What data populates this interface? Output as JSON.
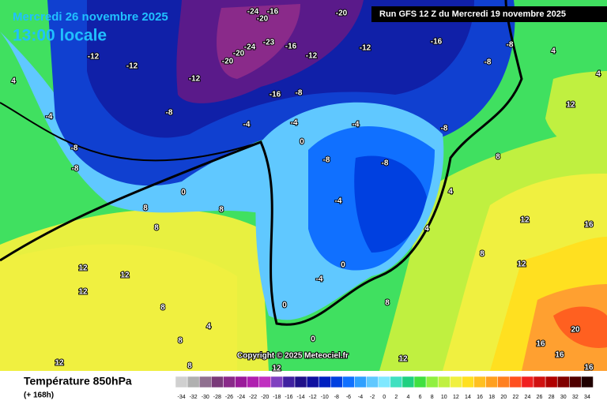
{
  "header": {
    "date": "Mercredi 26 novembre 2025",
    "time": "13:00 locale",
    "run": "Run GFS 12 Z du Mercredi 19 novembre 2025"
  },
  "footer": {
    "title": "Température 850hPa",
    "lead": "(+ 168h)",
    "copyright": "Copyright © 2025 Meteociel.fr"
  },
  "legend": {
    "values": [
      -34,
      -32,
      -30,
      -28,
      -26,
      -24,
      -22,
      -20,
      -18,
      -16,
      -14,
      -12,
      -10,
      -8,
      -6,
      -4,
      -2,
      0,
      2,
      4,
      6,
      8,
      10,
      12,
      14,
      16,
      18,
      20,
      22,
      24,
      26,
      28,
      30,
      32,
      34
    ],
    "colors": [
      "#d0d0d0",
      "#b0b0b0",
      "#907090",
      "#7a3a7a",
      "#8a2a8a",
      "#9a1a9a",
      "#b020b0",
      "#c030c0",
      "#8040c0",
      "#4020a0",
      "#20108a",
      "#1010a0",
      "#0020c0",
      "#0040e0",
      "#1070ff",
      "#30a0ff",
      "#60c8ff",
      "#80e8ff",
      "#40e0c0",
      "#20d080",
      "#40e040",
      "#90f040",
      "#c0f040",
      "#f0f040",
      "#ffe020",
      "#ffc020",
      "#ffa020",
      "#ff8020",
      "#ff5020",
      "#f02020",
      "#d01010",
      "#b00000",
      "#800000",
      "#500000",
      "#200000"
    ]
  },
  "map": {
    "labels": [
      -24,
      -16,
      -20,
      -20,
      -23,
      -24,
      -20,
      -20,
      -16,
      -12,
      -12,
      -16,
      -8,
      -8,
      4,
      4,
      -12,
      -12,
      -12,
      -16,
      -8,
      -8,
      -4,
      4,
      -4,
      -4,
      -4,
      -8,
      12,
      -8,
      -8,
      0,
      -8,
      -8,
      8,
      0,
      8,
      -4,
      4,
      8,
      12,
      8,
      16,
      12,
      12,
      0,
      -4,
      0,
      8,
      12,
      8,
      12,
      4,
      8,
      16,
      20,
      16,
      16,
      12,
      8,
      12,
      12,
      0,
      4,
      8
    ]
  }
}
